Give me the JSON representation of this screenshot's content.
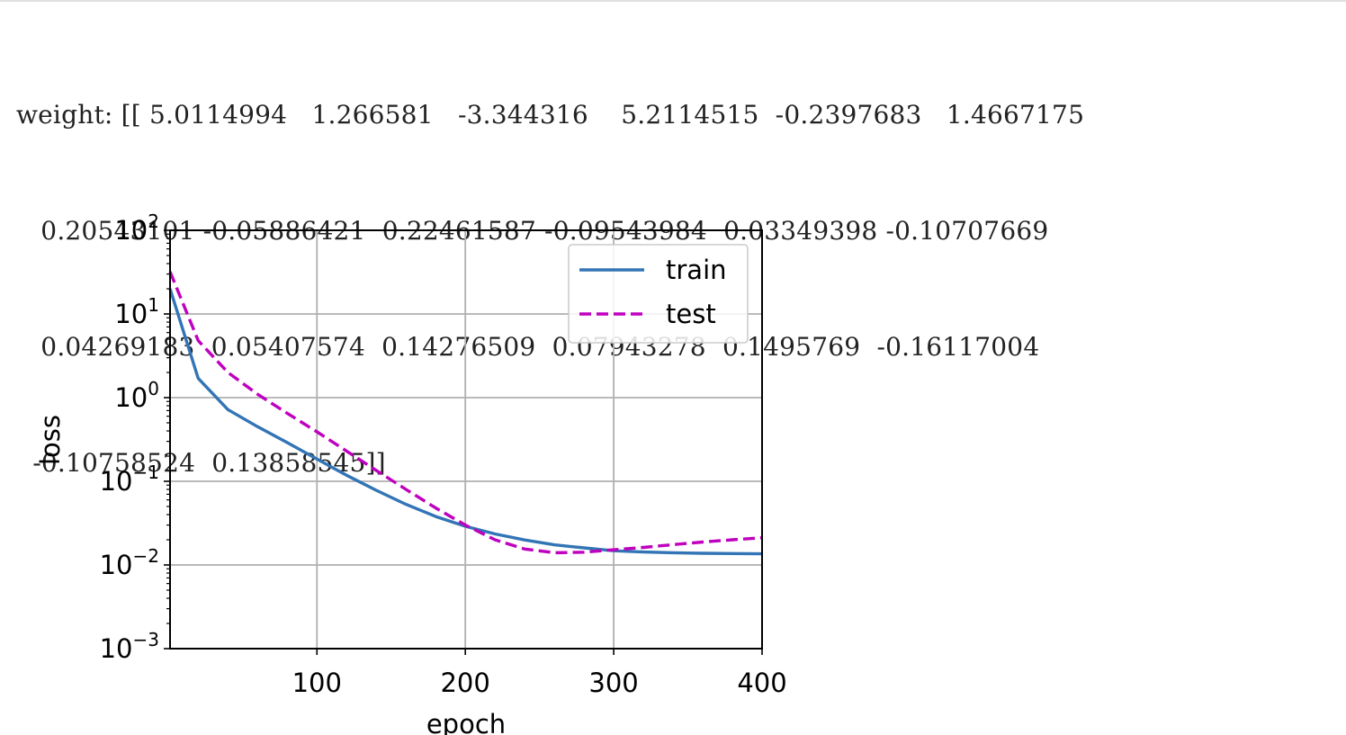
{
  "output": {
    "lines": [
      "weight: [[ 5.0114994   1.266581   -3.344316    5.2114515  -0.2397683   1.4667175",
      "   0.20543101 -0.05886421  0.22461587 -0.09543984  0.03349398 -0.10707669",
      "   0.04269183  0.05407574  0.14276509  0.07943278  0.1495769  -0.16117004",
      "  -0.10758524  0.13858545]]"
    ]
  },
  "chart_data": {
    "type": "line",
    "xlabel": "epoch",
    "ylabel": "loss",
    "xlim": [
      1,
      400
    ],
    "ylim": [
      0.001,
      100
    ],
    "yscale": "log",
    "grid": true,
    "legend_position": "top-right",
    "x_ticks": [
      100,
      200,
      300,
      400
    ],
    "y_ticks": [
      {
        "value": 100,
        "base": "10",
        "exp": "2"
      },
      {
        "value": 10,
        "base": "10",
        "exp": "1"
      },
      {
        "value": 1,
        "base": "10",
        "exp": "0"
      },
      {
        "value": 0.1,
        "base": "10",
        "exp": "−1"
      },
      {
        "value": 0.01,
        "base": "10",
        "exp": "−2"
      },
      {
        "value": 0.001,
        "base": "10",
        "exp": "−3"
      }
    ],
    "series": [
      {
        "name": "train",
        "color": "#3274b5",
        "dash": "solid",
        "x": [
          1,
          20,
          40,
          60,
          80,
          100,
          120,
          140,
          160,
          180,
          200,
          220,
          240,
          260,
          280,
          300,
          320,
          340,
          360,
          380,
          400
        ],
        "y": [
          20,
          1.7,
          0.72,
          0.45,
          0.29,
          0.185,
          0.118,
          0.078,
          0.053,
          0.038,
          0.029,
          0.0235,
          0.0199,
          0.0174,
          0.016,
          0.0148,
          0.0143,
          0.014,
          0.0138,
          0.0137,
          0.0136
        ]
      },
      {
        "name": "test",
        "color": "#bf00bf",
        "dash": "dashed",
        "x": [
          1,
          20,
          40,
          60,
          80,
          100,
          120,
          140,
          160,
          180,
          200,
          220,
          240,
          260,
          280,
          300,
          320,
          340,
          360,
          380,
          400
        ],
        "y": [
          32,
          4.8,
          2.0,
          1.1,
          0.65,
          0.39,
          0.23,
          0.135,
          0.08,
          0.048,
          0.03,
          0.02,
          0.0155,
          0.014,
          0.0142,
          0.0152,
          0.0162,
          0.0175,
          0.0188,
          0.02,
          0.0212
        ]
      }
    ]
  }
}
